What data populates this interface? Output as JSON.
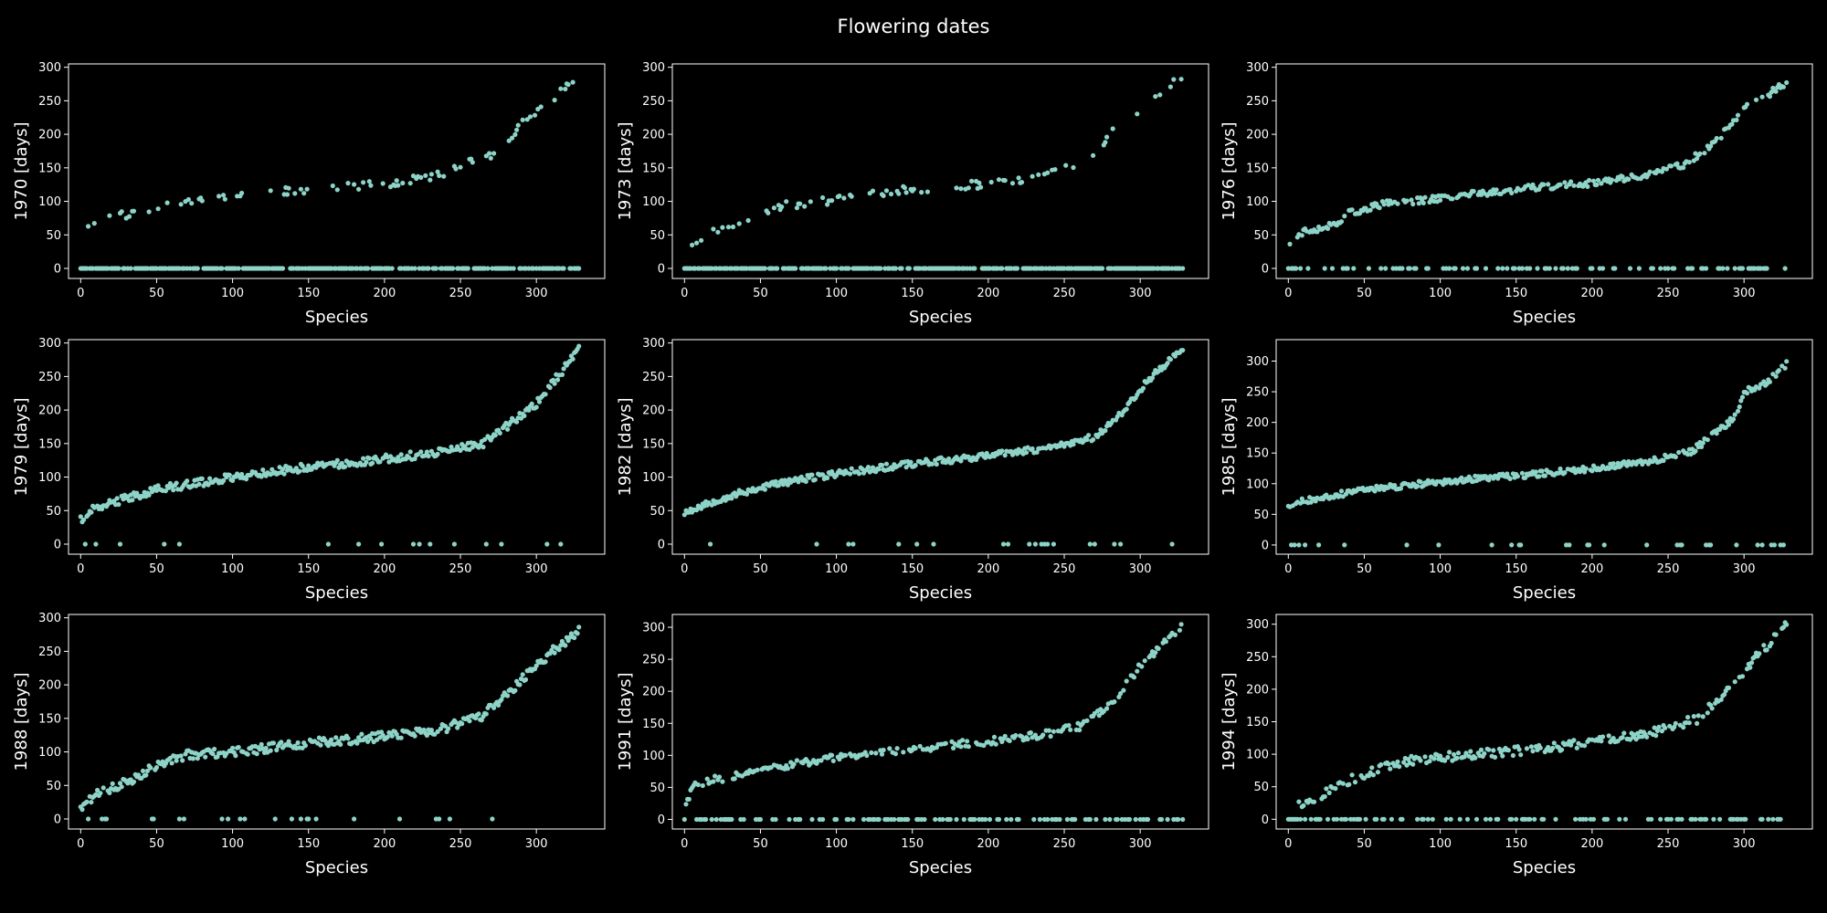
{
  "figure_title": "Flowering dates",
  "marker_color": "#8dd3c7",
  "chart_data": [
    {
      "type": "scatter",
      "year": "1970",
      "ylabel": "1970 [days]",
      "xlabel": "Species",
      "xlim": [
        -8,
        345
      ],
      "ylim": [
        -15,
        305
      ],
      "xticks": [
        0,
        50,
        100,
        150,
        200,
        250,
        300
      ],
      "yticks": [
        0,
        50,
        100,
        150,
        200,
        250,
        300
      ],
      "curve": [
        [
          0,
          65
        ],
        [
          20,
          76
        ],
        [
          40,
          85
        ],
        [
          60,
          100
        ],
        [
          100,
          108
        ],
        [
          150,
          118
        ],
        [
          200,
          126
        ],
        [
          240,
          140
        ],
        [
          255,
          160
        ],
        [
          270,
          170
        ],
        [
          280,
          185
        ],
        [
          290,
          215
        ],
        [
          310,
          250
        ],
        [
          328,
          288
        ]
      ],
      "zeros": "dense",
      "seed": 11,
      "noise": 6
    },
    {
      "type": "scatter",
      "year": "1973",
      "ylabel": "1973 [days]",
      "xlabel": "Species",
      "xlim": [
        -8,
        345
      ],
      "ylim": [
        -15,
        305
      ],
      "xticks": [
        0,
        50,
        100,
        150,
        200,
        250,
        300
      ],
      "yticks": [
        0,
        50,
        100,
        150,
        200,
        250,
        300
      ],
      "curve": [
        [
          0,
          32
        ],
        [
          20,
          55
        ],
        [
          40,
          75
        ],
        [
          60,
          92
        ],
        [
          90,
          100
        ],
        [
          120,
          110
        ],
        [
          150,
          118
        ],
        [
          200,
          126
        ],
        [
          240,
          140
        ],
        [
          265,
          160
        ],
        [
          280,
          200
        ],
        [
          300,
          230
        ],
        [
          328,
          290
        ]
      ],
      "zeros": "dense",
      "seed": 23,
      "noise": 6
    },
    {
      "type": "scatter",
      "year": "1976",
      "ylabel": "1976 [days]",
      "xlabel": "Species",
      "xlim": [
        -8,
        345
      ],
      "ylim": [
        -15,
        305
      ],
      "xticks": [
        0,
        50,
        100,
        150,
        200,
        250,
        300
      ],
      "yticks": [
        0,
        50,
        100,
        150,
        200,
        250,
        300
      ],
      "curve": [
        [
          0,
          38
        ],
        [
          10,
          55
        ],
        [
          30,
          65
        ],
        [
          40,
          82
        ],
        [
          60,
          95
        ],
        [
          100,
          105
        ],
        [
          150,
          118
        ],
        [
          200,
          127
        ],
        [
          240,
          140
        ],
        [
          260,
          155
        ],
        [
          280,
          185
        ],
        [
          300,
          240
        ],
        [
          315,
          258
        ],
        [
          328,
          278
        ]
      ],
      "zeros": "medium",
      "seed": 37,
      "noise": 5
    },
    {
      "type": "scatter",
      "year": "1979",
      "ylabel": "1979 [days]",
      "xlabel": "Species",
      "xlim": [
        -8,
        345
      ],
      "ylim": [
        -15,
        305
      ],
      "xticks": [
        0,
        50,
        100,
        150,
        200,
        250,
        300
      ],
      "yticks": [
        0,
        50,
        100,
        150,
        200,
        250,
        300
      ],
      "curve": [
        [
          0,
          35
        ],
        [
          10,
          55
        ],
        [
          30,
          68
        ],
        [
          50,
          82
        ],
        [
          80,
          92
        ],
        [
          100,
          100
        ],
        [
          150,
          115
        ],
        [
          200,
          127
        ],
        [
          240,
          138
        ],
        [
          265,
          150
        ],
        [
          280,
          175
        ],
        [
          300,
          210
        ],
        [
          328,
          290
        ]
      ],
      "zeros": "sparse",
      "seed": 41,
      "noise": 6
    },
    {
      "type": "scatter",
      "year": "1982",
      "ylabel": "1982 [days]",
      "xlabel": "Species",
      "xlim": [
        -8,
        345
      ],
      "ylim": [
        -15,
        305
      ],
      "xticks": [
        0,
        50,
        100,
        150,
        200,
        250,
        300
      ],
      "yticks": [
        0,
        50,
        100,
        150,
        200,
        250,
        300
      ],
      "curve": [
        [
          0,
          48
        ],
        [
          20,
          65
        ],
        [
          40,
          78
        ],
        [
          60,
          90
        ],
        [
          100,
          105
        ],
        [
          150,
          120
        ],
        [
          200,
          132
        ],
        [
          240,
          143
        ],
        [
          270,
          160
        ],
        [
          290,
          200
        ],
        [
          305,
          245
        ],
        [
          328,
          292
        ]
      ],
      "zeros": "sparse",
      "seed": 53,
      "noise": 5
    },
    {
      "type": "scatter",
      "year": "1985",
      "ylabel": "1985 [days]",
      "xlabel": "Species",
      "xlim": [
        -8,
        345
      ],
      "ylim": [
        -15,
        335
      ],
      "xticks": [
        0,
        50,
        100,
        150,
        200,
        250,
        300
      ],
      "yticks": [
        0,
        50,
        100,
        150,
        200,
        250,
        300
      ],
      "curve": [
        [
          0,
          65
        ],
        [
          20,
          78
        ],
        [
          40,
          85
        ],
        [
          60,
          93
        ],
        [
          100,
          103
        ],
        [
          150,
          113
        ],
        [
          200,
          125
        ],
        [
          240,
          138
        ],
        [
          265,
          152
        ],
        [
          280,
          180
        ],
        [
          295,
          210
        ],
        [
          300,
          250
        ],
        [
          315,
          265
        ],
        [
          328,
          295
        ]
      ],
      "zeros": "sparse",
      "seed": 67,
      "noise": 5
    },
    {
      "type": "scatter",
      "year": "1988",
      "ylabel": "1988 [days]",
      "xlabel": "Species",
      "xlim": [
        -8,
        345
      ],
      "ylim": [
        -15,
        305
      ],
      "xticks": [
        0,
        50,
        100,
        150,
        200,
        250,
        300
      ],
      "yticks": [
        0,
        50,
        100,
        150,
        200,
        250,
        300
      ],
      "curve": [
        [
          0,
          15
        ],
        [
          10,
          35
        ],
        [
          30,
          55
        ],
        [
          50,
          80
        ],
        [
          70,
          95
        ],
        [
          100,
          100
        ],
        [
          150,
          113
        ],
        [
          200,
          123
        ],
        [
          240,
          135
        ],
        [
          265,
          155
        ],
        [
          280,
          185
        ],
        [
          300,
          230
        ],
        [
          328,
          282
        ]
      ],
      "zeros": "sparse",
      "seed": 71,
      "noise": 7
    },
    {
      "type": "scatter",
      "year": "1991",
      "ylabel": "1991 [days]",
      "xlabel": "Species",
      "xlim": [
        -8,
        345
      ],
      "ylim": [
        -15,
        320
      ],
      "xticks": [
        0,
        50,
        100,
        150,
        200,
        250,
        300
      ],
      "yticks": [
        0,
        50,
        100,
        150,
        200,
        250,
        300
      ],
      "curve": [
        [
          0,
          15
        ],
        [
          5,
          50
        ],
        [
          20,
          62
        ],
        [
          40,
          72
        ],
        [
          70,
          85
        ],
        [
          100,
          98
        ],
        [
          150,
          110
        ],
        [
          200,
          122
        ],
        [
          230,
          130
        ],
        [
          260,
          145
        ],
        [
          270,
          160
        ],
        [
          285,
          190
        ],
        [
          300,
          240
        ],
        [
          328,
          305
        ]
      ],
      "zeros": "medium",
      "seed": 83,
      "noise": 6
    },
    {
      "type": "scatter",
      "year": "1994",
      "ylabel": "1994 [days]",
      "xlabel": "Species",
      "xlim": [
        -8,
        345
      ],
      "ylim": [
        -15,
        315
      ],
      "xticks": [
        0,
        50,
        100,
        150,
        200,
        250,
        300
      ],
      "yticks": [
        0,
        50,
        100,
        150,
        200,
        250,
        300
      ],
      "curve": [
        [
          0,
          15
        ],
        [
          20,
          35
        ],
        [
          40,
          60
        ],
        [
          60,
          78
        ],
        [
          80,
          90
        ],
        [
          100,
          95
        ],
        [
          150,
          105
        ],
        [
          200,
          118
        ],
        [
          240,
          133
        ],
        [
          270,
          155
        ],
        [
          290,
          200
        ],
        [
          310,
          255
        ],
        [
          328,
          298
        ]
      ],
      "zeros": "medium",
      "seed": 97,
      "noise": 7
    }
  ]
}
